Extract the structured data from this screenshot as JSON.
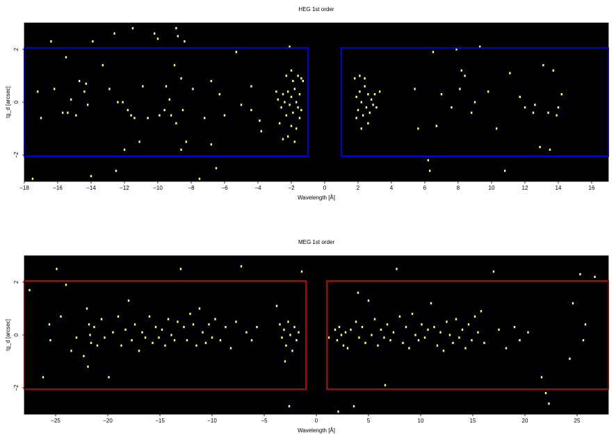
{
  "chart_data": [
    {
      "type": "scatter",
      "title": "HEG 1st order",
      "xlabel": "Wavelength [Å]",
      "ylabel": "tg_d [arcsec]",
      "xlim": [
        -18,
        17
      ],
      "ylim": [
        -3.0,
        3.0
      ],
      "xticks": [
        -18,
        -16,
        -14,
        -12,
        -10,
        -8,
        -6,
        -4,
        -2,
        0,
        2,
        4,
        6,
        8,
        10,
        12,
        14,
        16
      ],
      "yticks": [
        -2,
        0,
        2
      ],
      "background": "#000000",
      "point_color": "#ffff66",
      "region_color": "#0000ff",
      "regions": [
        {
          "x": [
            -18,
            -1
          ],
          "y": [
            -2.05,
            2.05
          ]
        },
        {
          "x": [
            1,
            17
          ],
          "y": [
            -2.05,
            2.05
          ]
        }
      ],
      "grid": false,
      "points": [
        [
          -17.5,
          -2.9
        ],
        [
          -17.2,
          0.4
        ],
        [
          -17.0,
          -0.6
        ],
        [
          -16.4,
          2.3
        ],
        [
          -16.2,
          0.5
        ],
        [
          -15.7,
          -0.4
        ],
        [
          -15.5,
          1.7
        ],
        [
          -15.2,
          0.1
        ],
        [
          -15.4,
          -0.4
        ],
        [
          -14.9,
          -0.5
        ],
        [
          -14.7,
          0.8
        ],
        [
          -14.4,
          0.4
        ],
        [
          -14.3,
          0.7
        ],
        [
          -14.2,
          -0.1
        ],
        [
          -14.0,
          -2.8
        ],
        [
          -13.9,
          2.3
        ],
        [
          -13.3,
          1.4
        ],
        [
          -12.9,
          0.5
        ],
        [
          -12.5,
          -2.6
        ],
        [
          -12.6,
          2.6
        ],
        [
          -12.4,
          0.0
        ],
        [
          -12.1,
          0.0
        ],
        [
          -12.0,
          -1.8
        ],
        [
          -11.8,
          -0.3
        ],
        [
          -11.6,
          -0.5
        ],
        [
          -11.5,
          2.8
        ],
        [
          -11.4,
          -0.6
        ],
        [
          -11.1,
          -1.5
        ],
        [
          -10.9,
          0.6
        ],
        [
          -10.6,
          -0.6
        ],
        [
          -10.2,
          2.6
        ],
        [
          -10.0,
          2.4
        ],
        [
          -9.9,
          -0.5
        ],
        [
          -9.5,
          0.6
        ],
        [
          -9.6,
          -0.3
        ],
        [
          -9.3,
          0.1
        ],
        [
          -9.2,
          -0.5
        ],
        [
          -9.0,
          1.4
        ],
        [
          -8.9,
          2.8
        ],
        [
          -8.9,
          -0.8
        ],
        [
          -8.8,
          2.5
        ],
        [
          -8.6,
          0.9
        ],
        [
          -8.5,
          -0.3
        ],
        [
          -8.3,
          -1.5
        ],
        [
          -8.6,
          -1.8
        ],
        [
          -7.9,
          0.5
        ],
        [
          -7.5,
          -2.9
        ],
        [
          -7.2,
          -0.6
        ],
        [
          -6.8,
          0.8
        ],
        [
          -6.5,
          -2.5
        ],
        [
          -6.3,
          0.3
        ],
        [
          -6.0,
          -0.5
        ],
        [
          -5.3,
          1.9
        ],
        [
          -5.0,
          -0.1
        ],
        [
          -4.4,
          0.6
        ],
        [
          -3.9,
          -0.7
        ],
        [
          -3.8,
          -1.1
        ],
        [
          -2.8,
          0.1
        ],
        [
          -2.6,
          -0.2
        ],
        [
          -2.5,
          0.3
        ],
        [
          -2.4,
          0.0
        ],
        [
          -2.3,
          -0.5
        ],
        [
          -2.2,
          0.4
        ],
        [
          -2.1,
          -0.1
        ],
        [
          -2.0,
          0.2
        ],
        [
          -1.9,
          -0.4
        ],
        [
          -1.8,
          0.5
        ],
        [
          -1.7,
          0.0
        ],
        [
          -1.6,
          -0.2
        ],
        [
          -1.5,
          0.3
        ],
        [
          -1.4,
          -0.3
        ],
        [
          -1.3,
          0.8
        ],
        [
          -2.7,
          -0.8
        ],
        [
          -2.2,
          -1.3
        ],
        [
          -1.7,
          -1.0
        ],
        [
          -2.0,
          -0.9
        ],
        [
          -1.4,
          0.9
        ],
        [
          -2.5,
          -1.4
        ],
        [
          -1.6,
          1.0
        ],
        [
          -1.9,
          0.8
        ],
        [
          -2.3,
          1.0
        ],
        [
          -2.9,
          0.4
        ],
        [
          -1.5,
          -0.6
        ],
        [
          -2.1,
          2.1
        ],
        [
          -1.8,
          -1.5
        ],
        [
          -2.0,
          1.2
        ],
        [
          1.8,
          0.9
        ],
        [
          1.9,
          0.2
        ],
        [
          2.0,
          -0.3
        ],
        [
          2.1,
          0.4
        ],
        [
          2.2,
          0.0
        ],
        [
          2.3,
          -0.5
        ],
        [
          2.4,
          0.6
        ],
        [
          2.5,
          -0.2
        ],
        [
          2.6,
          0.3
        ],
        [
          2.7,
          -0.4
        ],
        [
          2.8,
          0.1
        ],
        [
          2.9,
          -0.1
        ],
        [
          3.0,
          0.3
        ],
        [
          3.1,
          -0.2
        ],
        [
          2.2,
          -1.0
        ],
        [
          2.6,
          -0.8
        ],
        [
          2.4,
          0.9
        ],
        [
          1.9,
          -0.6
        ],
        [
          3.3,
          0.4
        ],
        [
          2.1,
          1.0
        ],
        [
          5.4,
          0.5
        ],
        [
          5.6,
          -1.0
        ],
        [
          6.2,
          -2.2
        ],
        [
          6.3,
          -2.6
        ],
        [
          6.5,
          1.9
        ],
        [
          6.7,
          -0.9
        ],
        [
          7.0,
          0.3
        ],
        [
          7.6,
          -0.2
        ],
        [
          7.9,
          2.0
        ],
        [
          8.1,
          0.5
        ],
        [
          8.2,
          1.2
        ],
        [
          8.4,
          1.0
        ],
        [
          8.8,
          -0.4
        ],
        [
          9.0,
          0.0
        ],
        [
          9.3,
          2.1
        ],
        [
          9.8,
          0.4
        ],
        [
          10.3,
          -1.0
        ],
        [
          10.8,
          -2.6
        ],
        [
          11.1,
          1.1
        ],
        [
          11.7,
          0.2
        ],
        [
          12.0,
          -0.2
        ],
        [
          12.5,
          -0.4
        ],
        [
          12.6,
          -0.1
        ],
        [
          12.9,
          -1.7
        ],
        [
          13.1,
          1.4
        ],
        [
          13.4,
          -0.4
        ],
        [
          13.5,
          -1.8
        ],
        [
          13.7,
          1.2
        ],
        [
          13.9,
          -0.5
        ],
        [
          14.0,
          -0.2
        ],
        [
          14.2,
          0.3
        ],
        [
          -8.4,
          2.3
        ],
        [
          -4.4,
          -0.3
        ],
        [
          -6.8,
          -1.6
        ]
      ]
    },
    {
      "type": "scatter",
      "title": "MEG 1st order",
      "xlabel": "Wavelength [Å]",
      "ylabel": "tg_d [arcsec]",
      "xlim": [
        -28,
        28
      ],
      "ylim": [
        -3.0,
        3.0
      ],
      "xticks": [
        -25,
        -20,
        -15,
        -10,
        -5,
        0,
        5,
        10,
        15,
        20,
        25
      ],
      "yticks": [
        -2,
        0,
        2
      ],
      "background": "#000000",
      "point_color": "#ffff66",
      "region_color": "#cc0000",
      "regions": [
        {
          "x": [
            -28,
            -1
          ],
          "y": [
            -2.05,
            2.05
          ]
        },
        {
          "x": [
            1,
            28
          ],
          "y": [
            -2.05,
            2.05
          ]
        }
      ],
      "grid": false,
      "points": [
        [
          -27.5,
          1.7
        ],
        [
          -26.2,
          -1.6
        ],
        [
          -25.6,
          0.4
        ],
        [
          -25.5,
          -0.2
        ],
        [
          -24.9,
          2.5
        ],
        [
          -24.5,
          0.7
        ],
        [
          -24.0,
          1.9
        ],
        [
          -23.5,
          -0.6
        ],
        [
          -23.0,
          -0.1
        ],
        [
          -22.3,
          -0.8
        ],
        [
          -22.0,
          1.0
        ],
        [
          -21.8,
          0.4
        ],
        [
          -21.6,
          -0.3
        ],
        [
          -21.7,
          0.0
        ],
        [
          -21.9,
          -1.2
        ],
        [
          -21.3,
          0.3
        ],
        [
          -21.0,
          -0.4
        ],
        [
          -20.6,
          0.6
        ],
        [
          -20.3,
          -0.1
        ],
        [
          -19.9,
          -1.6
        ],
        [
          -19.5,
          0.1
        ],
        [
          -19.0,
          0.7
        ],
        [
          -18.7,
          -0.4
        ],
        [
          -18.3,
          0.2
        ],
        [
          -18.0,
          1.3
        ],
        [
          -17.7,
          -0.2
        ],
        [
          -17.4,
          0.4
        ],
        [
          -17.0,
          -0.6
        ],
        [
          -16.7,
          0.1
        ],
        [
          -16.4,
          -0.1
        ],
        [
          -16.0,
          0.7
        ],
        [
          -15.7,
          -0.3
        ],
        [
          -15.4,
          0.3
        ],
        [
          -15.1,
          -0.1
        ],
        [
          -14.8,
          0.2
        ],
        [
          -14.5,
          -0.4
        ],
        [
          -14.2,
          0.6
        ],
        [
          -13.9,
          0.0
        ],
        [
          -13.6,
          -0.2
        ],
        [
          -13.3,
          0.5
        ],
        [
          -13.0,
          2.5
        ],
        [
          -12.7,
          0.3
        ],
        [
          -12.4,
          -0.2
        ],
        [
          -12.1,
          0.8
        ],
        [
          -11.8,
          0.4
        ],
        [
          -11.5,
          -0.4
        ],
        [
          -11.2,
          1.0
        ],
        [
          -10.9,
          0.1
        ],
        [
          -10.6,
          -0.3
        ],
        [
          -10.3,
          0.4
        ],
        [
          -10.0,
          -0.1
        ],
        [
          -9.7,
          0.6
        ],
        [
          -9.2,
          -0.2
        ],
        [
          -8.7,
          0.3
        ],
        [
          -8.2,
          -0.5
        ],
        [
          -7.7,
          0.5
        ],
        [
          -7.2,
          2.6
        ],
        [
          -6.7,
          0.1
        ],
        [
          -6.2,
          -0.2
        ],
        [
          -5.7,
          0.3
        ],
        [
          -3.8,
          1.1
        ],
        [
          -3.5,
          0.4
        ],
        [
          -3.3,
          -0.1
        ],
        [
          -3.1,
          0.2
        ],
        [
          -2.9,
          -0.4
        ],
        [
          -2.7,
          0.5
        ],
        [
          -2.5,
          0.0
        ],
        [
          -2.3,
          -0.6
        ],
        [
          -2.1,
          0.3
        ],
        [
          -1.9,
          -0.2
        ],
        [
          -1.7,
          0.1
        ],
        [
          -2.6,
          -2.7
        ],
        [
          -1.4,
          2.4
        ],
        [
          -3.0,
          -1.0
        ],
        [
          1.2,
          -0.1
        ],
        [
          1.8,
          0.2
        ],
        [
          2.0,
          -0.2
        ],
        [
          2.2,
          0.3
        ],
        [
          2.4,
          0.0
        ],
        [
          2.6,
          -0.4
        ],
        [
          2.8,
          0.1
        ],
        [
          3.0,
          -0.5
        ],
        [
          3.3,
          0.2
        ],
        [
          3.6,
          -2.7
        ],
        [
          3.8,
          0.5
        ],
        [
          4.1,
          -0.1
        ],
        [
          4.4,
          0.3
        ],
        [
          4.7,
          -0.3
        ],
        [
          5.0,
          1.3
        ],
        [
          5.3,
          0.0
        ],
        [
          5.6,
          0.6
        ],
        [
          5.9,
          -0.4
        ],
        [
          6.2,
          0.2
        ],
        [
          6.5,
          -0.1
        ],
        [
          6.8,
          0.4
        ],
        [
          7.1,
          -0.2
        ],
        [
          7.4,
          0.1
        ],
        [
          7.7,
          2.5
        ],
        [
          8.0,
          0.7
        ],
        [
          8.3,
          -0.3
        ],
        [
          8.6,
          0.3
        ],
        [
          8.9,
          -0.5
        ],
        [
          9.2,
          0.8
        ],
        [
          9.5,
          0.0
        ],
        [
          9.8,
          -0.2
        ],
        [
          10.1,
          0.4
        ],
        [
          10.4,
          -0.1
        ],
        [
          10.7,
          0.2
        ],
        [
          11.0,
          1.2
        ],
        [
          11.3,
          0.3
        ],
        [
          11.6,
          -0.4
        ],
        [
          11.9,
          0.1
        ],
        [
          12.2,
          -0.6
        ],
        [
          12.5,
          0.5
        ],
        [
          12.8,
          0.0
        ],
        [
          13.1,
          -0.3
        ],
        [
          13.4,
          0.6
        ],
        [
          13.7,
          -0.1
        ],
        [
          14.0,
          0.2
        ],
        [
          14.3,
          -0.5
        ],
        [
          14.6,
          0.4
        ],
        [
          14.9,
          -0.2
        ],
        [
          15.2,
          0.7
        ],
        [
          15.5,
          0.1
        ],
        [
          15.8,
          0.9
        ],
        [
          16.1,
          -0.3
        ],
        [
          17.0,
          2.4
        ],
        [
          17.5,
          0.2
        ],
        [
          18.2,
          -0.5
        ],
        [
          19.0,
          0.3
        ],
        [
          19.5,
          -0.2
        ],
        [
          20.3,
          0.1
        ],
        [
          21.6,
          -1.6
        ],
        [
          22.0,
          -2.2
        ],
        [
          22.3,
          -2.6
        ],
        [
          24.3,
          -0.9
        ],
        [
          24.6,
          1.2
        ],
        [
          25.3,
          2.3
        ],
        [
          25.6,
          -0.2
        ],
        [
          25.8,
          0.4
        ],
        [
          26.7,
          2.2
        ],
        [
          2.1,
          -2.9
        ],
        [
          4.0,
          1.6
        ],
        [
          6.6,
          -1.9
        ]
      ]
    }
  ]
}
